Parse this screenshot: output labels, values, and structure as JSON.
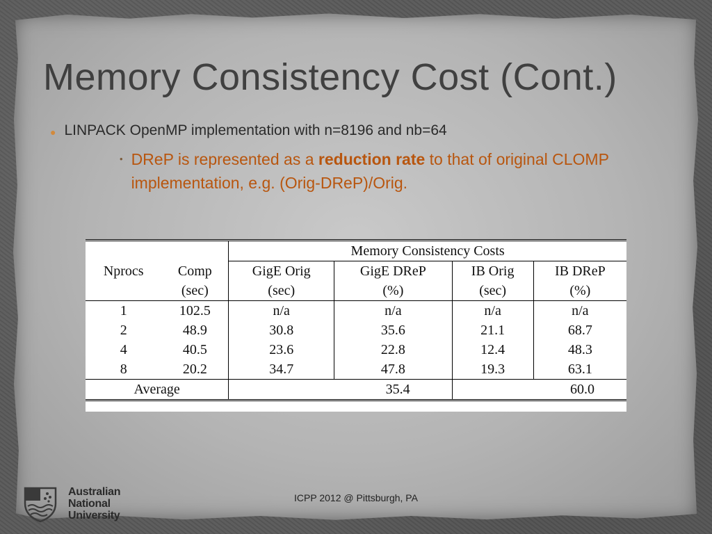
{
  "slide": {
    "title": "Memory Consistency Cost (Cont.)",
    "bullet1": "LINPACK OpenMP implementation with n=8196 and nb=64",
    "bullet2": {
      "before": "DReP is represented as a ",
      "bold": "reduction rate",
      "after": " to that of original CLOMP implementation, e.g. (Orig-DReP)/Orig."
    },
    "footer": "ICPP 2012 @ Pittsburgh, PA"
  },
  "logo": {
    "lines": [
      "Australian",
      "National",
      "University"
    ]
  },
  "table": {
    "group_header": "Memory Consistency Costs",
    "headers": [
      "Nprocs",
      "Comp",
      "GigE Orig",
      "GigE DReP",
      "IB Orig",
      "IB DReP"
    ],
    "units": [
      "",
      "(sec)",
      "(sec)",
      "(%)",
      "(sec)",
      "(%)"
    ],
    "rows": [
      [
        "1",
        "102.5",
        "n/a",
        "n/a",
        "n/a",
        "n/a"
      ],
      [
        "2",
        "48.9",
        "30.8",
        "35.6",
        "21.1",
        "68.7"
      ],
      [
        "4",
        "40.5",
        "23.6",
        "22.8",
        "12.4",
        "48.3"
      ],
      [
        "8",
        "20.2",
        "34.7",
        "47.8",
        "19.3",
        "63.1"
      ]
    ],
    "average": {
      "label": "Average",
      "gige_drep": "35.4",
      "ib_drep": "60.0"
    }
  }
}
